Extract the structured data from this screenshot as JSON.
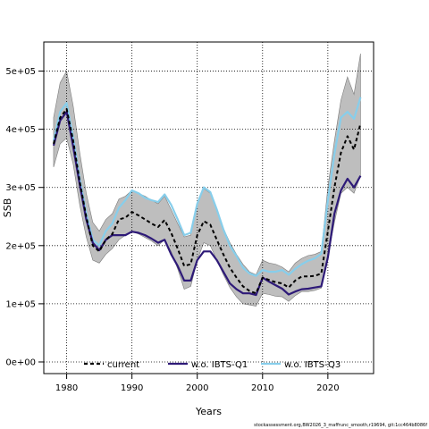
{
  "chart_data": {
    "type": "line",
    "title": "",
    "xlabel": "Years",
    "ylabel": "SSB",
    "xlim": [
      1976.5,
      2027
    ],
    "ylim": [
      -20000,
      550000
    ],
    "x_ticks": [
      1980,
      1990,
      2000,
      2010,
      2020
    ],
    "x_tick_labels": [
      "1980",
      "1990",
      "2000",
      "2010",
      "2020"
    ],
    "y_ticks": [
      0,
      100000,
      200000,
      300000,
      400000,
      500000
    ],
    "y_tick_labels": [
      "0e+00",
      "1e+05",
      "2e+05",
      "3e+05",
      "4e+05",
      "5e+05"
    ],
    "grid": true,
    "legend_position": "bottom",
    "footer": "stockassessment.org,BW2026_3_maffrunc_smooth,r19694, git:1cc464b8086f",
    "x": [
      1978,
      1979,
      1980,
      1981,
      1982,
      1983,
      1984,
      1985,
      1986,
      1987,
      1988,
      1989,
      1990,
      1991,
      1992,
      1993,
      1994,
      1995,
      1996,
      1997,
      1998,
      1999,
      2000,
      2001,
      2002,
      2003,
      2004,
      2005,
      2006,
      2007,
      2008,
      2009,
      2010,
      2011,
      2012,
      2013,
      2014,
      2015,
      2016,
      2017,
      2018,
      2019,
      2020,
      2021,
      2022,
      2023,
      2024,
      2025
    ],
    "series": [
      {
        "name": "current",
        "color": "#000000",
        "dash": "dashed",
        "values": [
          375000,
          420000,
          435000,
          380000,
          310000,
          250000,
          200000,
          190000,
          210000,
          220000,
          245000,
          248000,
          258000,
          252000,
          245000,
          238000,
          232000,
          244000,
          222000,
          195000,
          165000,
          168000,
          218000,
          242000,
          236000,
          210000,
          185000,
          162000,
          145000,
          130000,
          122000,
          118000,
          145000,
          141000,
          137000,
          135000,
          128000,
          140000,
          147000,
          147000,
          148000,
          152000,
          225000,
          300000,
          360000,
          388000,
          365000,
          410000
        ],
        "lower": [
          335000,
          375000,
          385000,
          340000,
          270000,
          215000,
          175000,
          170000,
          185000,
          195000,
          210000,
          218000,
          225000,
          220000,
          214000,
          208000,
          200000,
          210000,
          190000,
          160000,
          125000,
          130000,
          175000,
          205000,
          200000,
          175000,
          150000,
          128000,
          112000,
          100000,
          98000,
          96000,
          118000,
          116000,
          113000,
          112000,
          104000,
          114000,
          121000,
          121000,
          123000,
          127000,
          180000,
          240000,
          290000,
          300000,
          290000,
          320000
        ],
        "upper": [
          420000,
          480000,
          500000,
          440000,
          360000,
          290000,
          240000,
          225000,
          245000,
          255000,
          280000,
          285000,
          295000,
          290000,
          285000,
          278000,
          272000,
          285000,
          262000,
          238000,
          215000,
          218000,
          270000,
          298000,
          290000,
          262000,
          230000,
          205000,
          185000,
          168000,
          155000,
          150000,
          175000,
          170000,
          168000,
          163000,
          155000,
          170000,
          178000,
          183000,
          185000,
          190000,
          300000,
          380000,
          450000,
          490000,
          460000,
          530000
        ]
      },
      {
        "name": "w.o. IBTS-Q1",
        "color": "#2e1a78",
        "dash": "solid",
        "values": [
          372000,
          415000,
          430000,
          370000,
          305000,
          245000,
          205000,
          192000,
          210000,
          218000,
          218000,
          218000,
          224000,
          222000,
          218000,
          212000,
          205000,
          210000,
          185000,
          165000,
          140000,
          140000,
          175000,
          190000,
          190000,
          175000,
          155000,
          135000,
          125000,
          118000,
          118000,
          115000,
          145000,
          138000,
          132000,
          126000,
          116000,
          121000,
          125000,
          126000,
          128000,
          130000,
          180000,
          255000,
          295000,
          315000,
          300000,
          320000
        ]
      },
      {
        "name": "w.o. IBTS-Q3",
        "color": "#87ceeb",
        "dash": "solid",
        "values": [
          380000,
          430000,
          445000,
          385000,
          315000,
          255000,
          210000,
          200000,
          225000,
          238000,
          265000,
          278000,
          295000,
          290000,
          282000,
          278000,
          275000,
          288000,
          270000,
          245000,
          218000,
          222000,
          272000,
          300000,
          292000,
          262000,
          228000,
          200000,
          182000,
          162000,
          152000,
          148000,
          158000,
          155000,
          155000,
          158000,
          150000,
          160000,
          168000,
          174000,
          178000,
          186000,
          278000,
          358000,
          420000,
          430000,
          418000,
          455000
        ]
      }
    ]
  }
}
